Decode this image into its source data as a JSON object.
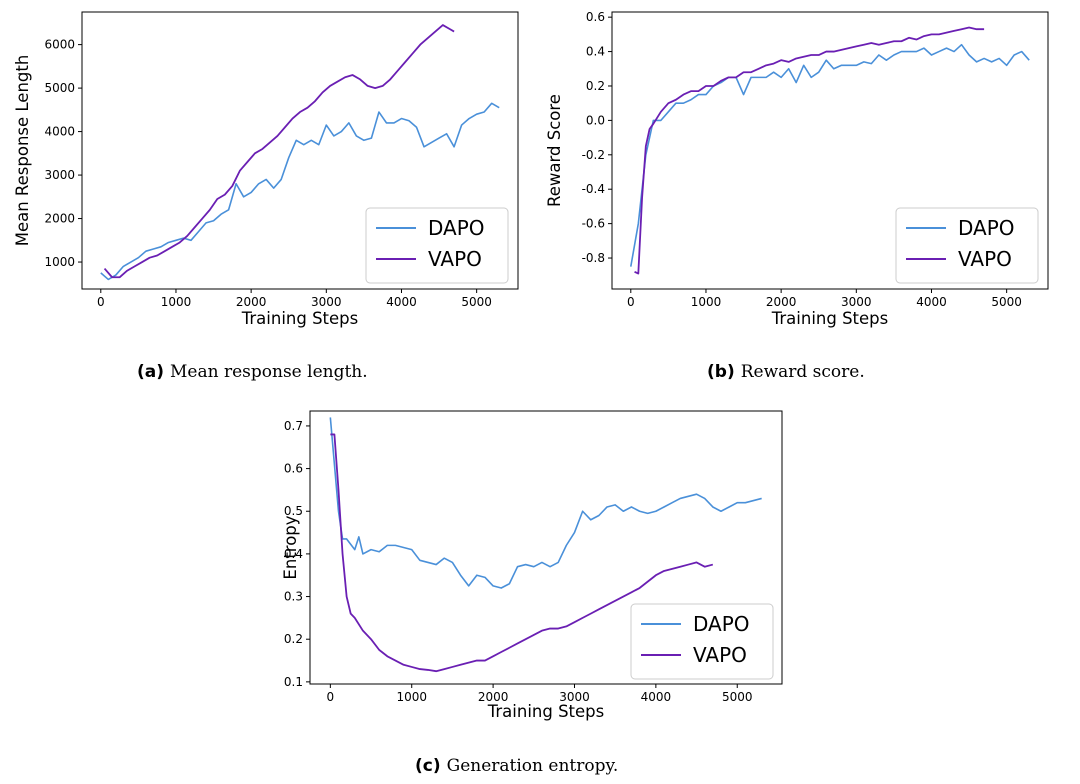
{
  "chart_data": [
    {
      "id": "a",
      "type": "line",
      "title": "",
      "xlabel": "Training Steps",
      "ylabel": "Mean Response Length",
      "xlim": [
        -250,
        5550
      ],
      "ylim": [
        380,
        6750
      ],
      "xticks": [
        0,
        1000,
        2000,
        3000,
        4000,
        5000
      ],
      "yticks": [
        1000,
        2000,
        3000,
        4000,
        5000,
        6000
      ],
      "legend": "lower-right",
      "caption_tag": "(a)",
      "caption": "Mean response length.",
      "series": [
        {
          "name": "DAPO",
          "color": "#4a90d9",
          "x": [
            0,
            100,
            200,
            300,
            400,
            500,
            600,
            700,
            800,
            900,
            1000,
            1100,
            1200,
            1300,
            1400,
            1500,
            1600,
            1700,
            1800,
            1900,
            2000,
            2100,
            2200,
            2300,
            2400,
            2500,
            2600,
            2700,
            2800,
            2900,
            3000,
            3100,
            3200,
            3300,
            3400,
            3500,
            3600,
            3700,
            3800,
            3900,
            4000,
            4100,
            4200,
            4300,
            4400,
            4500,
            4600,
            4700,
            4800,
            4900,
            5000,
            5100,
            5200,
            5300
          ],
          "y": [
            750,
            600,
            700,
            900,
            1000,
            1100,
            1250,
            1300,
            1350,
            1450,
            1500,
            1550,
            1500,
            1700,
            1900,
            1950,
            2100,
            2200,
            2800,
            2500,
            2600,
            2800,
            2900,
            2700,
            2900,
            3400,
            3800,
            3700,
            3800,
            3700,
            4150,
            3900,
            4000,
            4200,
            3900,
            3800,
            3850,
            4450,
            4200,
            4200,
            4300,
            4250,
            4100,
            3650,
            3750,
            3850,
            3950,
            3650,
            4150,
            4300,
            4400,
            4450,
            4650,
            4550
          ]
        },
        {
          "name": "VAPO",
          "color": "#6a1fb3",
          "x": [
            50,
            150,
            250,
            350,
            450,
            550,
            650,
            750,
            850,
            950,
            1050,
            1150,
            1250,
            1350,
            1450,
            1550,
            1650,
            1750,
            1850,
            1950,
            2050,
            2150,
            2250,
            2350,
            2450,
            2550,
            2650,
            2750,
            2850,
            2950,
            3050,
            3150,
            3250,
            3350,
            3450,
            3550,
            3650,
            3750,
            3850,
            3950,
            4050,
            4150,
            4250,
            4350,
            4450,
            4550,
            4650,
            4700
          ],
          "y": [
            850,
            650,
            650,
            800,
            900,
            1000,
            1100,
            1150,
            1250,
            1350,
            1450,
            1600,
            1800,
            2000,
            2200,
            2450,
            2550,
            2750,
            3100,
            3300,
            3500,
            3600,
            3750,
            3900,
            4100,
            4300,
            4450,
            4550,
            4700,
            4900,
            5050,
            5150,
            5250,
            5300,
            5200,
            5050,
            5000,
            5050,
            5200,
            5400,
            5600,
            5800,
            6000,
            6150,
            6300,
            6450,
            6350,
            6300
          ]
        }
      ]
    },
    {
      "id": "b",
      "type": "line",
      "title": "",
      "xlabel": "Training Steps",
      "ylabel": "Reward Score",
      "xlim": [
        -250,
        5550
      ],
      "ylim": [
        -0.98,
        0.63
      ],
      "xticks": [
        0,
        1000,
        2000,
        3000,
        4000,
        5000
      ],
      "yticks": [
        -0.8,
        -0.6,
        -0.4,
        -0.2,
        0.0,
        0.2,
        0.4,
        0.6
      ],
      "legend": "lower-right",
      "caption_tag": "(b)",
      "caption": "Reward score.",
      "series": [
        {
          "name": "DAPO",
          "color": "#4a90d9",
          "x": [
            0,
            100,
            200,
            300,
            400,
            500,
            600,
            700,
            800,
            900,
            1000,
            1100,
            1200,
            1300,
            1400,
            1500,
            1600,
            1700,
            1800,
            1900,
            2000,
            2100,
            2200,
            2300,
            2400,
            2500,
            2600,
            2700,
            2800,
            2900,
            3000,
            3100,
            3200,
            3300,
            3400,
            3500,
            3600,
            3700,
            3800,
            3900,
            4000,
            4100,
            4200,
            4300,
            4400,
            4500,
            4600,
            4700,
            4800,
            4900,
            5000,
            5100,
            5200,
            5300
          ],
          "y": [
            -0.85,
            -0.6,
            -0.2,
            0.0,
            0.0,
            0.05,
            0.1,
            0.1,
            0.12,
            0.15,
            0.15,
            0.2,
            0.22,
            0.25,
            0.25,
            0.15,
            0.25,
            0.25,
            0.25,
            0.28,
            0.25,
            0.3,
            0.22,
            0.32,
            0.25,
            0.28,
            0.35,
            0.3,
            0.32,
            0.32,
            0.32,
            0.34,
            0.33,
            0.38,
            0.35,
            0.38,
            0.4,
            0.4,
            0.4,
            0.42,
            0.38,
            0.4,
            0.42,
            0.4,
            0.44,
            0.38,
            0.34,
            0.36,
            0.34,
            0.36,
            0.32,
            0.38,
            0.4,
            0.35
          ]
        },
        {
          "name": "VAPO",
          "color": "#6a1fb3",
          "x": [
            50,
            100,
            150,
            200,
            250,
            300,
            400,
            500,
            600,
            700,
            800,
            900,
            1000,
            1100,
            1200,
            1300,
            1400,
            1500,
            1600,
            1700,
            1800,
            1900,
            2000,
            2100,
            2200,
            2300,
            2400,
            2500,
            2600,
            2700,
            2800,
            2900,
            3000,
            3100,
            3200,
            3300,
            3400,
            3500,
            3600,
            3700,
            3800,
            3900,
            4000,
            4100,
            4200,
            4300,
            4400,
            4500,
            4600,
            4700
          ],
          "y": [
            -0.88,
            -0.89,
            -0.45,
            -0.15,
            -0.05,
            -0.02,
            0.05,
            0.1,
            0.12,
            0.15,
            0.17,
            0.17,
            0.2,
            0.2,
            0.23,
            0.25,
            0.25,
            0.28,
            0.28,
            0.3,
            0.32,
            0.33,
            0.35,
            0.34,
            0.36,
            0.37,
            0.38,
            0.38,
            0.4,
            0.4,
            0.41,
            0.42,
            0.43,
            0.44,
            0.45,
            0.44,
            0.45,
            0.46,
            0.46,
            0.48,
            0.47,
            0.49,
            0.5,
            0.5,
            0.51,
            0.52,
            0.53,
            0.54,
            0.53,
            0.53
          ]
        }
      ]
    },
    {
      "id": "c",
      "type": "line",
      "title": "",
      "xlabel": "Training Steps",
      "ylabel": "Entropy",
      "xlim": [
        -250,
        5550
      ],
      "ylim": [
        0.095,
        0.735
      ],
      "xticks": [
        0,
        1000,
        2000,
        3000,
        4000,
        5000
      ],
      "yticks": [
        0.1,
        0.2,
        0.3,
        0.4,
        0.5,
        0.6,
        0.7
      ],
      "legend": "lower-right",
      "caption_tag": "(c)",
      "caption": "Generation entropy.",
      "series": [
        {
          "name": "DAPO",
          "color": "#4a90d9",
          "x": [
            0,
            100,
            150,
            200,
            300,
            350,
            400,
            500,
            600,
            700,
            800,
            900,
            1000,
            1100,
            1200,
            1300,
            1400,
            1500,
            1600,
            1700,
            1800,
            1900,
            2000,
            2100,
            2200,
            2300,
            2400,
            2500,
            2600,
            2700,
            2800,
            2900,
            3000,
            3100,
            3200,
            3300,
            3400,
            3500,
            3600,
            3700,
            3800,
            3900,
            4000,
            4100,
            4200,
            4300,
            4400,
            4500,
            4600,
            4700,
            4800,
            4900,
            5000,
            5100,
            5200,
            5300
          ],
          "y": [
            0.72,
            0.5,
            0.435,
            0.435,
            0.41,
            0.44,
            0.4,
            0.41,
            0.405,
            0.42,
            0.42,
            0.415,
            0.41,
            0.385,
            0.38,
            0.375,
            0.39,
            0.38,
            0.35,
            0.325,
            0.35,
            0.345,
            0.325,
            0.32,
            0.33,
            0.37,
            0.375,
            0.37,
            0.38,
            0.37,
            0.38,
            0.42,
            0.45,
            0.5,
            0.48,
            0.49,
            0.51,
            0.515,
            0.5,
            0.51,
            0.5,
            0.495,
            0.5,
            0.51,
            0.52,
            0.53,
            0.535,
            0.54,
            0.53,
            0.51,
            0.5,
            0.51,
            0.52,
            0.52,
            0.525,
            0.53
          ]
        },
        {
          "name": "VAPO",
          "color": "#6a1fb3",
          "x": [
            0,
            50,
            100,
            150,
            200,
            250,
            300,
            400,
            500,
            600,
            700,
            800,
            900,
            1000,
            1100,
            1200,
            1300,
            1400,
            1500,
            1600,
            1700,
            1800,
            1900,
            2000,
            2100,
            2200,
            2300,
            2400,
            2500,
            2600,
            2700,
            2800,
            2900,
            3000,
            3100,
            3200,
            3300,
            3400,
            3500,
            3600,
            3700,
            3800,
            3900,
            4000,
            4100,
            4200,
            4300,
            4400,
            4500,
            4600,
            4700
          ],
          "y": [
            0.68,
            0.68,
            0.55,
            0.4,
            0.3,
            0.26,
            0.25,
            0.22,
            0.2,
            0.175,
            0.16,
            0.15,
            0.14,
            0.135,
            0.13,
            0.128,
            0.125,
            0.13,
            0.135,
            0.14,
            0.145,
            0.15,
            0.15,
            0.16,
            0.17,
            0.18,
            0.19,
            0.2,
            0.21,
            0.22,
            0.225,
            0.225,
            0.23,
            0.24,
            0.25,
            0.26,
            0.27,
            0.28,
            0.29,
            0.3,
            0.31,
            0.32,
            0.335,
            0.35,
            0.36,
            0.365,
            0.37,
            0.375,
            0.38,
            0.37,
            0.375
          ]
        }
      ]
    }
  ]
}
